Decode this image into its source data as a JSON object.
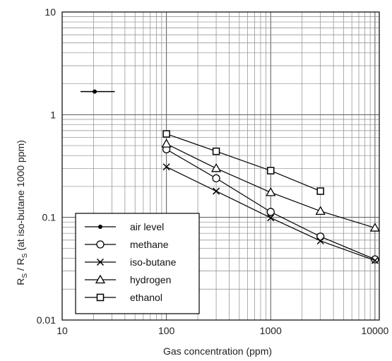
{
  "chart_data": {
    "type": "line",
    "title": "",
    "xlabel": "Gas concentration (ppm)",
    "ylabel": "Rs / Rs (at iso-butane 1000 ppm)",
    "ylabel_parts": {
      "r1": "R",
      "s1": "S",
      "sep": " / R",
      "s2": "S",
      "rest": " (at iso-butane 1000 ppm)"
    },
    "x_scale": "log",
    "y_scale": "log",
    "xlim": [
      10,
      11000
    ],
    "ylim": [
      0.01,
      10
    ],
    "x_ticks": [
      {
        "value": 10,
        "label": "10"
      },
      {
        "value": 100,
        "label": "100"
      },
      {
        "value": 1000,
        "label": "1000"
      },
      {
        "value": 10000,
        "label": "10000"
      }
    ],
    "y_ticks": [
      {
        "value": 10,
        "label": "10"
      },
      {
        "value": 1,
        "label": "1"
      },
      {
        "value": 0.1,
        "label": "0.1"
      },
      {
        "value": 0.01,
        "label": "0.01"
      }
    ],
    "grid": true,
    "legend_position": "bottom-left",
    "series": [
      {
        "name": "air level",
        "marker": "dot",
        "points": [
          [
            20.5,
            1.68
          ]
        ],
        "x_span": [
          15,
          32
        ]
      },
      {
        "name": "methane",
        "marker": "circle",
        "points": [
          [
            100,
            0.46
          ],
          [
            300,
            0.24
          ],
          [
            1000,
            0.113
          ],
          [
            3000,
            0.065
          ],
          [
            10000,
            0.039
          ]
        ]
      },
      {
        "name": "iso-butane",
        "marker": "cross",
        "points": [
          [
            100,
            0.31
          ],
          [
            300,
            0.18
          ],
          [
            1000,
            0.099
          ],
          [
            3000,
            0.059
          ],
          [
            10000,
            0.038
          ]
        ]
      },
      {
        "name": "hydrogen",
        "marker": "triangle",
        "points": [
          [
            100,
            0.52
          ],
          [
            300,
            0.3
          ],
          [
            1000,
            0.175
          ],
          [
            3000,
            0.115
          ],
          [
            10000,
            0.079
          ]
        ]
      },
      {
        "name": "ethanol",
        "marker": "square",
        "points": [
          [
            100,
            0.65
          ],
          [
            300,
            0.44
          ],
          [
            1000,
            0.285
          ],
          [
            3000,
            0.18
          ]
        ]
      }
    ]
  }
}
